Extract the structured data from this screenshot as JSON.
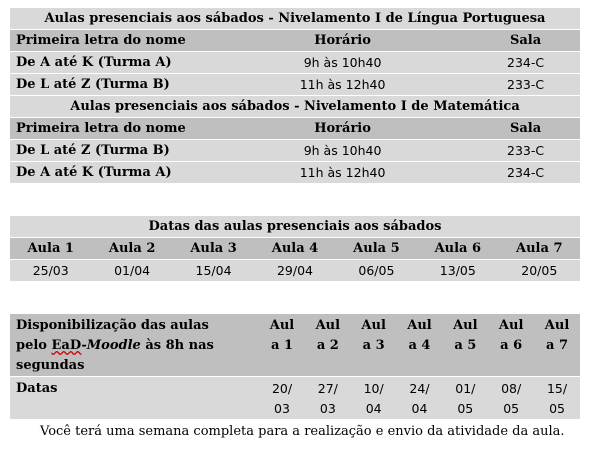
{
  "table1": {
    "portugues_title": "Aulas presenciais aos sábados - Nivelamento I de Língua Portuguesa",
    "matematica_title": "Aulas presenciais aos sábados - Nivelamento I de Matemática",
    "headers": [
      "Primeira letra do nome",
      "Horário",
      "Sala"
    ],
    "portugues_rows": [
      {
        "grupo": "De A até K (Turma A)",
        "horario": "9h às 10h40",
        "sala": "234-C"
      },
      {
        "grupo": "De L até Z (Turma B)",
        "horario": "11h às 12h40",
        "sala": "233-C"
      }
    ],
    "matematica_rows": [
      {
        "grupo": "De L até Z (Turma B)",
        "horario": "9h às 10h40",
        "sala": "233-C"
      },
      {
        "grupo": "De A até K (Turma A)",
        "horario": "11h às 12h40",
        "sala": "234-C"
      }
    ]
  },
  "table2": {
    "title": "Datas das aulas presenciais aos sábados",
    "aulas": [
      "Aula 1",
      "Aula 2",
      "Aula 3",
      "Aula 4",
      "Aula 5",
      "Aula 6",
      "Aula 7"
    ],
    "datas": [
      "25/03",
      "01/04",
      "15/04",
      "29/04",
      "06/05",
      "13/05",
      "20/05"
    ]
  },
  "table3": {
    "header_line1": "Disponibilização das aulas",
    "header_line2_prefix": "pelo ",
    "header_ead": "EaD",
    "header_dash": "-",
    "header_moodle": "Moodle",
    "header_line2_suffix": " às 8h nas",
    "header_line3": "segundas",
    "aulas": [
      [
        "Aul",
        "a 1"
      ],
      [
        "Aul",
        "a 2"
      ],
      [
        "Aul",
        "a 3"
      ],
      [
        "Aul",
        "a 4"
      ],
      [
        "Aul",
        "a 5"
      ],
      [
        "Aul",
        "a 6"
      ],
      [
        "Aul",
        "a 7"
      ]
    ],
    "datas_label": "Datas",
    "datas": [
      [
        "20/",
        "03"
      ],
      [
        "27/",
        "03"
      ],
      [
        "10/",
        "04"
      ],
      [
        "24/",
        "04"
      ],
      [
        "01/",
        "05"
      ],
      [
        "08/",
        "05"
      ],
      [
        "15/",
        "05"
      ]
    ]
  },
  "footer": "Você terá uma semana completa para a realização e envio da atividade da aula."
}
